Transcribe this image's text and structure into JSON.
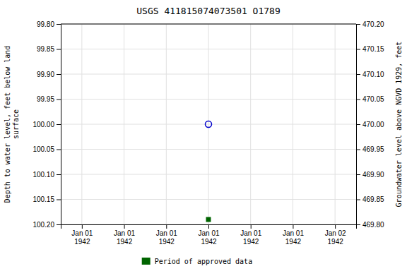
{
  "chart_data": {
    "type": "scatter",
    "title": "USGS 411815074073501 O1789",
    "ylabel": "Depth to water level, feet below land\nsurface",
    "y2label": "Groundwater level above NGVD 1929, feet",
    "categories": [
      "Jan 01\n1942",
      "Jan 01\n1942",
      "Jan 01\n1942",
      "Jan 01\n1942",
      "Jan 01\n1942",
      "Jan 01\n1942",
      "Jan 02\n1942"
    ],
    "ylim": [
      100.2,
      99.8
    ],
    "yticks": [
      {
        "value": 99.8,
        "label": "99.80"
      },
      {
        "value": 99.85,
        "label": "99.85"
      },
      {
        "value": 99.9,
        "label": "99.90"
      },
      {
        "value": 99.95,
        "label": "99.95"
      },
      {
        "value": 100.0,
        "label": "100.00"
      },
      {
        "value": 100.05,
        "label": "100.05"
      },
      {
        "value": 100.1,
        "label": "100.10"
      },
      {
        "value": 100.15,
        "label": "100.15"
      },
      {
        "value": 100.2,
        "label": "100.20"
      }
    ],
    "y2lim": [
      469.8,
      470.2
    ],
    "y2ticks": [
      {
        "value": 470.2,
        "label": "470.20"
      },
      {
        "value": 470.15,
        "label": "470.15"
      },
      {
        "value": 470.1,
        "label": "470.10"
      },
      {
        "value": 470.05,
        "label": "470.05"
      },
      {
        "value": 470.0,
        "label": "470.00"
      },
      {
        "value": 469.95,
        "label": "469.95"
      },
      {
        "value": 469.9,
        "label": "469.90"
      },
      {
        "value": 469.85,
        "label": "469.85"
      },
      {
        "value": 469.8,
        "label": "469.80"
      }
    ],
    "series": [
      {
        "color": "#0000cc",
        "marker": "circle-open",
        "values": [
          null,
          null,
          null,
          100.0,
          null,
          null,
          null
        ]
      },
      {
        "name": "Period of approved data",
        "color": "#006400",
        "marker": "square",
        "values": [
          null,
          null,
          null,
          100.19,
          null,
          null,
          null
        ]
      }
    ],
    "grid": true,
    "legend": "bottom"
  }
}
